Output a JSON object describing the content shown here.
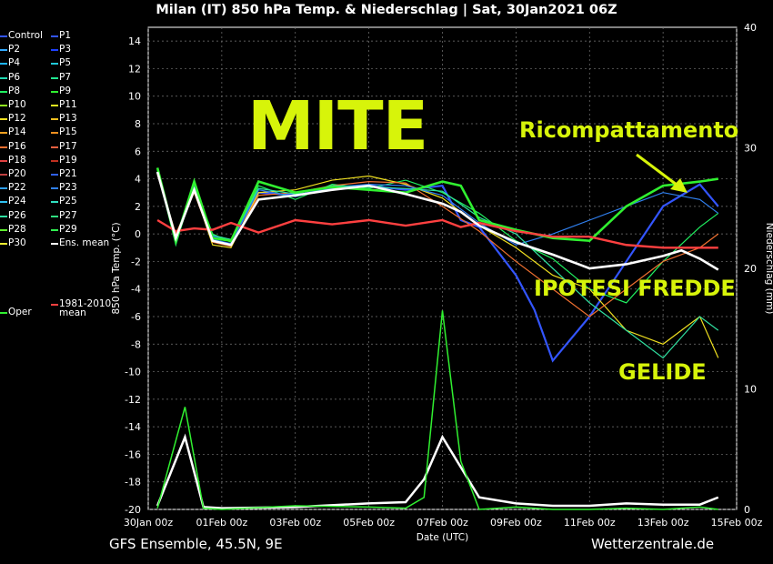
{
  "title": "Milan  (IT)  850 hPa Temp. & Niederschlag | Sat, 30Jan2021 06Z",
  "footer_left": "GFS Ensemble, 45.5N, 9E",
  "footer_right": "Wetterzentrale.de",
  "annotations": {
    "mite": "MITE",
    "ricompattamento": "Ricompattamento",
    "ipotesi": "IPOTESI FREDDE",
    "gelide": "GELIDE"
  },
  "legend": [
    {
      "label": "Control",
      "color": "#3355ff"
    },
    {
      "label": "P1",
      "color": "#3355ff"
    },
    {
      "label": "P2",
      "color": "#33aaff"
    },
    {
      "label": "P3",
      "color": "#1e40ff"
    },
    {
      "label": "P4",
      "color": "#1eb5ff"
    },
    {
      "label": "P5",
      "color": "#20c8d8"
    },
    {
      "label": "P6",
      "color": "#20d8b0"
    },
    {
      "label": "P7",
      "color": "#20e890"
    },
    {
      "label": "P8",
      "color": "#20f060"
    },
    {
      "label": "P9",
      "color": "#30f030"
    },
    {
      "label": "P10",
      "color": "#90f020"
    },
    {
      "label": "P11",
      "color": "#e0f020"
    },
    {
      "label": "P12",
      "color": "#f0e020"
    },
    {
      "label": "P13",
      "color": "#f0c020"
    },
    {
      "label": "P14",
      "color": "#f0a020"
    },
    {
      "label": "P15",
      "color": "#f09020"
    },
    {
      "label": "P16",
      "color": "#f07030"
    },
    {
      "label": "P17",
      "color": "#f06040"
    },
    {
      "label": "P18",
      "color": "#e04040"
    },
    {
      "label": "P19",
      "color": "#c03020"
    },
    {
      "label": "P20",
      "color": "#c04040"
    },
    {
      "label": "P21",
      "color": "#3060f0"
    },
    {
      "label": "P22",
      "color": "#30a0f0"
    },
    {
      "label": "P23",
      "color": "#3080f0"
    },
    {
      "label": "P24",
      "color": "#30c0f0"
    },
    {
      "label": "P25",
      "color": "#30e0c0"
    },
    {
      "label": "P26",
      "color": "#30e0a0"
    },
    {
      "label": "P27",
      "color": "#30e080"
    },
    {
      "label": "P28",
      "color": "#60f030"
    },
    {
      "label": "P29",
      "color": "#30f050"
    },
    {
      "label": "P30",
      "color": "#f0f030"
    },
    {
      "label": "Ens. mean",
      "color": "#ffffff"
    },
    {
      "label": "Oper",
      "color": "#30f030"
    },
    {
      "label": "1981-2010\nmean",
      "color": "#ff4040"
    }
  ],
  "chart_data": {
    "type": "line",
    "xlabel": "Date (UTC)",
    "ylabel": "850 hPa Temp. (°C)",
    "y2label": "Niederschlag (mm)",
    "ylim": [
      -20,
      15
    ],
    "y2lim": [
      0,
      40
    ],
    "xticks": [
      "30Jan 00z",
      "01Feb 00z",
      "03Feb 00z",
      "05Feb 00z",
      "07Feb 00z",
      "09Feb 00z",
      "11Feb 00z",
      "13Feb 00z",
      "15Feb 00z"
    ],
    "yticks": [
      -20,
      -18,
      -16,
      -14,
      -12,
      -10,
      -8,
      -6,
      -4,
      -2,
      0,
      2,
      4,
      6,
      8,
      10,
      12,
      14
    ],
    "y2ticks": [
      0,
      10,
      20,
      30,
      40
    ],
    "days_per_tick": 2,
    "x_range_days": [
      0,
      16
    ],
    "grid": true,
    "series": [
      {
        "name": "Oper",
        "color": "#30f030",
        "x": [
          0.25,
          0.75,
          1.25,
          1.75,
          2.25,
          3,
          4,
          5,
          6,
          7,
          8,
          8.5,
          9,
          10,
          11,
          12,
          13,
          14,
          15,
          15.5
        ],
        "y": [
          4.8,
          -0.5,
          3.8,
          -0.3,
          -0.5,
          3.8,
          3.0,
          3.4,
          3.2,
          3.0,
          3.8,
          3.5,
          1.0,
          0.3,
          -0.3,
          -0.5,
          2.0,
          3.5,
          3.8,
          4.0
        ]
      },
      {
        "name": "Ens. mean",
        "color": "#ffffff",
        "x": [
          0.25,
          0.75,
          1.25,
          1.75,
          2.25,
          3,
          4,
          5,
          6,
          7,
          8,
          8.5,
          9,
          10,
          11,
          12,
          13,
          14,
          14.5,
          15,
          15.5
        ],
        "y": [
          4.5,
          -0.3,
          3.2,
          -0.5,
          -0.8,
          2.5,
          2.8,
          3.2,
          3.5,
          2.9,
          2.2,
          1.6,
          0.6,
          -0.6,
          -1.5,
          -2.5,
          -2.2,
          -1.6,
          -1.2,
          -1.8,
          -2.6
        ]
      },
      {
        "name": "1981-2010\nmean",
        "color": "#ff4040",
        "x": [
          0.25,
          0.75,
          1.25,
          1.75,
          2.25,
          3,
          4,
          5,
          6,
          7,
          8,
          8.5,
          9,
          10,
          11,
          12,
          13,
          14,
          15,
          15.5
        ],
        "y": [
          1.0,
          0.2,
          0.4,
          0.3,
          0.8,
          0.1,
          1.0,
          0.7,
          1.0,
          0.6,
          1.0,
          0.5,
          0.8,
          0.2,
          -0.2,
          -0.2,
          -0.8,
          -1.0,
          -1.0,
          -1.0
        ]
      },
      {
        "name": "Control",
        "color": "#3355ff",
        "x": [
          0.25,
          0.75,
          1.25,
          1.75,
          2.25,
          3,
          4,
          5,
          6,
          7,
          8,
          8.5,
          9,
          10,
          10.5,
          11,
          12,
          13,
          14,
          15,
          15.5
        ],
        "y": [
          4.5,
          -0.3,
          3.5,
          -0.2,
          -0.5,
          3.0,
          2.8,
          3.3,
          3.5,
          3.2,
          3.5,
          1.0,
          0.5,
          -3.0,
          -5.5,
          -9.2,
          -6.0,
          -2.0,
          2.0,
          3.6,
          2.0
        ]
      },
      {
        "name": "P8",
        "color": "#20f060",
        "x": [
          0.25,
          0.75,
          1.25,
          1.75,
          2.25,
          3,
          4,
          5,
          6,
          7,
          8,
          9,
          10,
          11,
          12,
          13,
          14,
          15,
          15.5
        ],
        "y": [
          4.6,
          -0.8,
          3.6,
          0.0,
          -0.6,
          3.5,
          2.5,
          3.6,
          3.3,
          3.9,
          3.0,
          1.5,
          -0.5,
          -1.8,
          -4.0,
          -5.0,
          -2.0,
          0.5,
          1.5
        ]
      },
      {
        "name": "P12",
        "color": "#f0e020",
        "x": [
          0.25,
          0.75,
          1.25,
          1.75,
          2.25,
          3,
          4,
          5,
          6,
          7,
          8,
          9,
          10,
          11,
          12,
          13,
          14,
          15,
          15.5
        ],
        "y": [
          4.4,
          -0.2,
          3.2,
          -0.8,
          -1.0,
          3.0,
          3.2,
          3.9,
          4.2,
          3.6,
          2.6,
          0.6,
          -1.0,
          -3.0,
          -4.0,
          -7.0,
          -8.0,
          -6.0,
          -9.0
        ]
      },
      {
        "name": "P16",
        "color": "#f07030",
        "x": [
          0.25,
          0.75,
          1.25,
          1.75,
          2.25,
          3,
          4,
          5,
          6,
          7,
          8,
          9,
          10,
          11,
          12,
          13,
          14,
          15,
          15.5
        ],
        "y": [
          4.3,
          0.0,
          3.0,
          -0.6,
          -0.9,
          2.8,
          3.0,
          3.5,
          3.8,
          3.7,
          2.0,
          0.2,
          -2.0,
          -4.0,
          -6.0,
          -4.0,
          -2.0,
          -1.0,
          0.0
        ]
      },
      {
        "name": "P23",
        "color": "#3080f0",
        "x": [
          0.25,
          0.75,
          1.25,
          1.75,
          2.25,
          3,
          4,
          5,
          6,
          7,
          8,
          9,
          10,
          11,
          12,
          13,
          14,
          15,
          15.5
        ],
        "y": [
          4.5,
          -0.4,
          3.4,
          -0.4,
          -0.7,
          3.2,
          2.7,
          3.4,
          3.6,
          3.5,
          2.8,
          0.8,
          -0.8,
          0.0,
          1.0,
          2.0,
          3.0,
          2.5,
          1.5
        ]
      },
      {
        "name": "P26",
        "color": "#30e0a0",
        "x": [
          0.25,
          0.75,
          1.25,
          1.75,
          2.25,
          3,
          4,
          5,
          6,
          7,
          8,
          9,
          10,
          11,
          12,
          13,
          14,
          15,
          15.5
        ],
        "y": [
          4.7,
          -0.6,
          3.7,
          -0.1,
          -0.4,
          3.3,
          2.9,
          3.5,
          3.4,
          3.3,
          3.1,
          1.2,
          0.0,
          -2.5,
          -5.0,
          -7.0,
          -9.0,
          -6.0,
          -7.0
        ]
      }
    ],
    "precip_series": [
      {
        "name": "Ens. mean",
        "color": "#ffffff",
        "x": [
          0.25,
          1.0,
          1.5,
          2,
          4,
          6,
          7,
          7.5,
          8,
          8.5,
          9,
          10,
          11,
          12,
          13,
          14,
          15,
          15.5
        ],
        "y": [
          0.3,
          6.0,
          0.2,
          0.1,
          0.2,
          0.5,
          0.6,
          2.5,
          6.0,
          3.5,
          1.0,
          0.5,
          0.3,
          0.3,
          0.5,
          0.4,
          0.4,
          1.0
        ]
      },
      {
        "name": "Oper",
        "color": "#30f030",
        "x": [
          0.25,
          1.0,
          1.5,
          2,
          4,
          6,
          7,
          7.5,
          8,
          8.5,
          9,
          10,
          11,
          12,
          13,
          14,
          15,
          15.5
        ],
        "y": [
          0.1,
          8.5,
          0.1,
          0.0,
          0.3,
          0.2,
          0.1,
          1.0,
          16.5,
          4.0,
          0.0,
          0.2,
          0.0,
          0.0,
          0.1,
          0.0,
          0.2,
          0.0
        ]
      }
    ]
  }
}
